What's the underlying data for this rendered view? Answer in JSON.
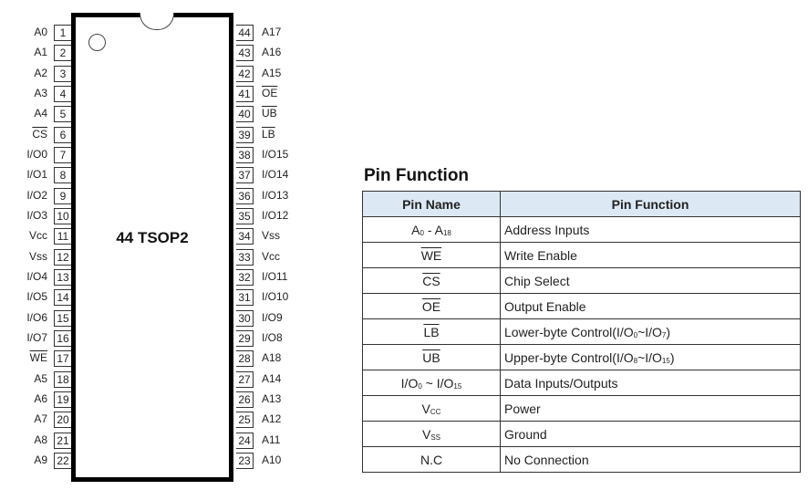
{
  "package": {
    "name": "44 TSOP2",
    "left_pins": [
      {
        "num": "1",
        "label": [
          {
            "t": "A0"
          }
        ]
      },
      {
        "num": "2",
        "label": [
          {
            "t": "A1"
          }
        ]
      },
      {
        "num": "3",
        "label": [
          {
            "t": "A2"
          }
        ]
      },
      {
        "num": "4",
        "label": [
          {
            "t": "A3"
          }
        ]
      },
      {
        "num": "5",
        "label": [
          {
            "t": "A4"
          }
        ]
      },
      {
        "num": "6",
        "label": [
          {
            "t": "CS",
            "s": "over"
          }
        ]
      },
      {
        "num": "7",
        "label": [
          {
            "t": "I/O0"
          }
        ]
      },
      {
        "num": "8",
        "label": [
          {
            "t": "I/O1"
          }
        ]
      },
      {
        "num": "9",
        "label": [
          {
            "t": "I/O2"
          }
        ]
      },
      {
        "num": "10",
        "label": [
          {
            "t": "I/O3"
          }
        ]
      },
      {
        "num": "11",
        "label": [
          {
            "t": "Vcc"
          }
        ]
      },
      {
        "num": "12",
        "label": [
          {
            "t": "Vss"
          }
        ]
      },
      {
        "num": "13",
        "label": [
          {
            "t": "I/O4"
          }
        ]
      },
      {
        "num": "14",
        "label": [
          {
            "t": "I/O5"
          }
        ]
      },
      {
        "num": "15",
        "label": [
          {
            "t": "I/O6"
          }
        ]
      },
      {
        "num": "16",
        "label": [
          {
            "t": "I/O7"
          }
        ]
      },
      {
        "num": "17",
        "label": [
          {
            "t": "WE",
            "s": "over"
          }
        ]
      },
      {
        "num": "18",
        "label": [
          {
            "t": "A5"
          }
        ]
      },
      {
        "num": "19",
        "label": [
          {
            "t": "A6"
          }
        ]
      },
      {
        "num": "20",
        "label": [
          {
            "t": "A7"
          }
        ]
      },
      {
        "num": "21",
        "label": [
          {
            "t": "A8"
          }
        ]
      },
      {
        "num": "22",
        "label": [
          {
            "t": "A9"
          }
        ]
      }
    ],
    "right_pins": [
      {
        "num": "44",
        "label": [
          {
            "t": "A17"
          }
        ]
      },
      {
        "num": "43",
        "label": [
          {
            "t": "A16"
          }
        ]
      },
      {
        "num": "42",
        "label": [
          {
            "t": "A15"
          }
        ]
      },
      {
        "num": "41",
        "label": [
          {
            "t": "OE",
            "s": "over"
          }
        ]
      },
      {
        "num": "40",
        "label": [
          {
            "t": "UB",
            "s": "over"
          }
        ]
      },
      {
        "num": "39",
        "label": [
          {
            "t": "LB",
            "s": "over"
          }
        ]
      },
      {
        "num": "38",
        "label": [
          {
            "t": "I/O15"
          }
        ]
      },
      {
        "num": "37",
        "label": [
          {
            "t": "I/O14"
          }
        ]
      },
      {
        "num": "36",
        "label": [
          {
            "t": "I/O13"
          }
        ]
      },
      {
        "num": "35",
        "label": [
          {
            "t": "I/O12"
          }
        ]
      },
      {
        "num": "34",
        "label": [
          {
            "t": "Vss"
          }
        ]
      },
      {
        "num": "33",
        "label": [
          {
            "t": "Vcc"
          }
        ]
      },
      {
        "num": "32",
        "label": [
          {
            "t": "I/O11"
          }
        ]
      },
      {
        "num": "31",
        "label": [
          {
            "t": "I/O10"
          }
        ]
      },
      {
        "num": "30",
        "label": [
          {
            "t": "I/O9"
          }
        ]
      },
      {
        "num": "29",
        "label": [
          {
            "t": "I/O8"
          }
        ]
      },
      {
        "num": "28",
        "label": [
          {
            "t": "A18"
          }
        ]
      },
      {
        "num": "27",
        "label": [
          {
            "t": "A14"
          }
        ]
      },
      {
        "num": "26",
        "label": [
          {
            "t": "A13"
          }
        ]
      },
      {
        "num": "25",
        "label": [
          {
            "t": "A12"
          }
        ]
      },
      {
        "num": "24",
        "label": [
          {
            "t": "A11"
          }
        ]
      },
      {
        "num": "23",
        "label": [
          {
            "t": "A10"
          }
        ]
      }
    ]
  },
  "pin_function": {
    "title": "Pin Function",
    "header_color": "#dce9f5",
    "columns": [
      "Pin Name",
      "Pin Function"
    ],
    "rows": [
      {
        "name": [
          {
            "t": "A"
          },
          {
            "t": "0",
            "s": "sub"
          },
          {
            "t": " - A"
          },
          {
            "t": "18",
            "s": "sub"
          }
        ],
        "func": [
          {
            "t": "Address Inputs"
          }
        ]
      },
      {
        "name": [
          {
            "t": "WE",
            "s": "over"
          }
        ],
        "func": [
          {
            "t": "Write Enable"
          }
        ]
      },
      {
        "name": [
          {
            "t": "CS",
            "s": "over"
          }
        ],
        "func": [
          {
            "t": "Chip Select"
          }
        ]
      },
      {
        "name": [
          {
            "t": "OE",
            "s": "over"
          }
        ],
        "func": [
          {
            "t": "Output Enable"
          }
        ]
      },
      {
        "name": [
          {
            "t": "LB",
            "s": "over"
          }
        ],
        "func": [
          {
            "t": "Lower-byte Control(I/O"
          },
          {
            "t": "0",
            "s": "sub"
          },
          {
            "t": "~I/O"
          },
          {
            "t": "7",
            "s": "sub"
          },
          {
            "t": ")"
          }
        ]
      },
      {
        "name": [
          {
            "t": "UB",
            "s": "over"
          }
        ],
        "func": [
          {
            "t": "Upper-byte Control(I/O"
          },
          {
            "t": "8",
            "s": "sub"
          },
          {
            "t": "~I/O"
          },
          {
            "t": "15",
            "s": "sub"
          },
          {
            "t": ")"
          }
        ]
      },
      {
        "name": [
          {
            "t": "I/O"
          },
          {
            "t": "0",
            "s": "sub"
          },
          {
            "t": " ~ I/O"
          },
          {
            "t": "15",
            "s": "sub"
          }
        ],
        "func": [
          {
            "t": "Data Inputs/Outputs"
          }
        ]
      },
      {
        "name": [
          {
            "t": "V"
          },
          {
            "t": "CC",
            "s": "sub"
          }
        ],
        "func": [
          {
            "t": "Power"
          }
        ]
      },
      {
        "name": [
          {
            "t": "V"
          },
          {
            "t": "SS",
            "s": "sub"
          }
        ],
        "func": [
          {
            "t": "Ground"
          }
        ]
      },
      {
        "name": [
          {
            "t": "N.C"
          }
        ],
        "func": [
          {
            "t": "No Connection"
          }
        ]
      }
    ]
  }
}
